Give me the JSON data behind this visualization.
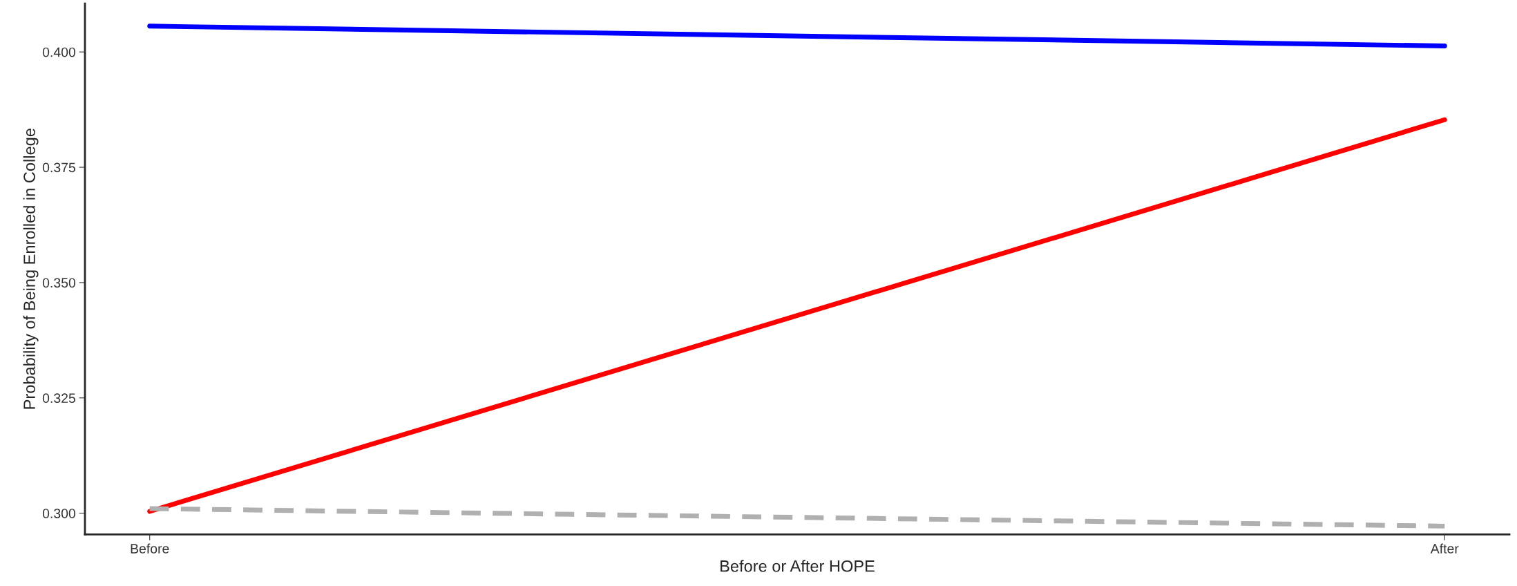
{
  "chart_data": {
    "type": "line",
    "xlabel": "Before or After HOPE",
    "ylabel": "Probability of Being Enrolled in College",
    "categories": [
      "Before",
      "After"
    ],
    "series": [
      {
        "color": "#0000ff",
        "values": [
          0.4056,
          0.4013
        ],
        "line_style": "solid"
      },
      {
        "color": "#ff0000",
        "values": [
          0.3004,
          0.3853
        ],
        "line_style": "solid"
      },
      {
        "color": "#b0b0b0",
        "values": [
          0.301,
          0.2972
        ],
        "line_style": "dashed"
      }
    ],
    "ylim": [
      0.2954,
      0.4105
    ],
    "yticks": [
      {
        "value": 0.3,
        "label": "0.300"
      },
      {
        "value": 0.325,
        "label": "0.325"
      },
      {
        "value": 0.35,
        "label": "0.350"
      },
      {
        "value": 0.375,
        "label": "0.375"
      },
      {
        "value": 0.4,
        "label": "0.400"
      }
    ],
    "grid": false,
    "legend": false
  }
}
